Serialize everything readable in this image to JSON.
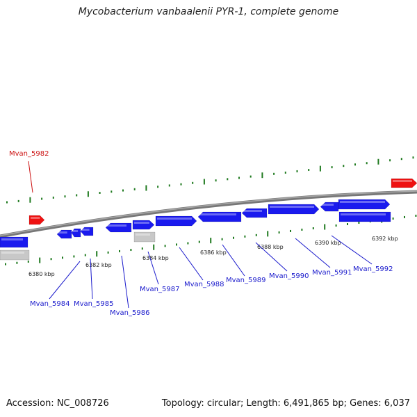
{
  "header": {
    "title": "Mycobacterium vanbaalenii PYR-1, complete genome"
  },
  "footer": {
    "accession": "Accession: NC_008726",
    "stats": "Topology: circular; Length: 6,491,865 bp; Genes: 6,037"
  },
  "colors": {
    "forward_gene": "#1a1aee",
    "pseudo_gene": "#c8c8c8",
    "highlight_gene": "#ee1111",
    "backbone": "#8a8a8a",
    "ticks": "#1f7a1f",
    "label_blue": "#1a1acc",
    "label_red": "#cc1111"
  },
  "ticks": [
    "6380 kbp",
    "6382 kbp",
    "6384 kbp",
    "6386 kbp",
    "6388 kbp",
    "6390 kbp",
    "6392 kbp"
  ],
  "gene_labels": [
    "Mvan_5982",
    "Mvan_5984",
    "Mvan_5985",
    "Mvan_5986",
    "Mvan_5987",
    "Mvan_5988",
    "Mvan_5989",
    "Mvan_5990",
    "Mvan_5991",
    "Mvan_5992"
  ]
}
